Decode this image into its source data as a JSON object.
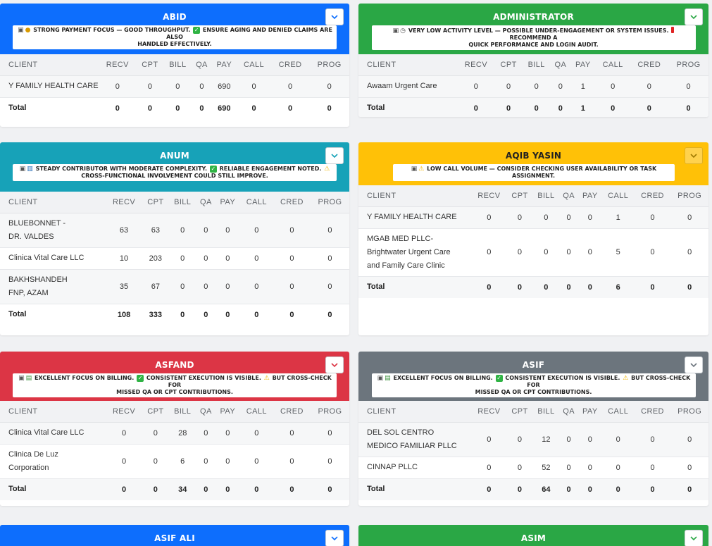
{
  "colors": {
    "blue": "#0d6efd",
    "green": "#2aa745",
    "teal": "#17a2b8",
    "yellow": "#ffc107",
    "red": "#dc3545",
    "gray": "#6c757d"
  },
  "columns": [
    "CLIENT",
    "RECV",
    "CPT",
    "BILL",
    "QA",
    "PAY",
    "CALL",
    "CRED",
    "PROG"
  ],
  "cards": {
    "abid": {
      "title": "ABID",
      "n1": "STRONG PAYMENT FOCUS — GOOD THROUGHPUT.",
      "n2": "ENSURE AGING AND DENIED CLAIMS ARE ALSO",
      "n3": "HANDLED EFFECTIVELY.",
      "rows": [
        [
          "Y FAMILY HEALTH CARE",
          "0",
          "0",
          "0",
          "0",
          "690",
          "0",
          "0",
          "0"
        ]
      ],
      "total": [
        "Total",
        "0",
        "0",
        "0",
        "0",
        "690",
        "0",
        "0",
        "0"
      ]
    },
    "administrator": {
      "title": "ADMINISTRATOR",
      "n1": "VERY LOW ACTIVITY LEVEL — POSSIBLE UNDER-ENGAGEMENT OR SYSTEM ISSUES.",
      "n2": "RECOMMEND A",
      "n3": "QUICK PERFORMANCE AND LOGIN AUDIT.",
      "rows": [
        [
          "Awaam Urgent Care",
          "0",
          "0",
          "0",
          "0",
          "1",
          "0",
          "0",
          "0"
        ]
      ],
      "total": [
        "Total",
        "0",
        "0",
        "0",
        "0",
        "1",
        "0",
        "0",
        "0"
      ]
    },
    "anum": {
      "title": "ANUM",
      "n1": "STEADY CONTRIBUTOR WITH MODERATE COMPLEXITY.",
      "n2": "RELIABLE ENGAGEMENT NOTED.",
      "n3": "CROSS-FUNCTIONAL INVOLVEMENT COULD STILL IMPROVE.",
      "rows": [
        [
          "BLUEBONNET - DR. VALDES",
          "63",
          "63",
          "0",
          "0",
          "0",
          "0",
          "0",
          "0"
        ],
        [
          "Clinica Vital Care LLC",
          "10",
          "203",
          "0",
          "0",
          "0",
          "0",
          "0",
          "0"
        ],
        [
          "BAKHSHANDEH FNP, AZAM",
          "35",
          "67",
          "0",
          "0",
          "0",
          "0",
          "0",
          "0"
        ]
      ],
      "total": [
        "Total",
        "108",
        "333",
        "0",
        "0",
        "0",
        "0",
        "0",
        "0"
      ]
    },
    "aqib": {
      "title": "AQIB YASIN",
      "n1": "LOW CALL VOLUME — CONSIDER CHECKING USER AVAILABILITY OR TASK ASSIGNMENT.",
      "rows": [
        [
          "Y FAMILY HEALTH CARE",
          "0",
          "0",
          "0",
          "0",
          "0",
          "1",
          "0",
          "0"
        ],
        [
          "MGAB MED PLLC-Brightwater Urgent Care and Family Care Clinic",
          "0",
          "0",
          "0",
          "0",
          "0",
          "5",
          "0",
          "0"
        ]
      ],
      "total": [
        "Total",
        "0",
        "0",
        "0",
        "0",
        "0",
        "6",
        "0",
        "0"
      ]
    },
    "asfand": {
      "title": "ASFAND",
      "n1": "EXCELLENT FOCUS ON BILLING.",
      "n2": "CONSISTENT EXECUTION IS VISIBLE.",
      "n3": "BUT CROSS-CHECK FOR",
      "n4": "MISSED QA OR CPT CONTRIBUTIONS.",
      "rows": [
        [
          "Clinica Vital Care LLC",
          "0",
          "0",
          "28",
          "0",
          "0",
          "0",
          "0",
          "0"
        ],
        [
          "Clinica De Luz Corporation",
          "0",
          "0",
          "6",
          "0",
          "0",
          "0",
          "0",
          "0"
        ]
      ],
      "total": [
        "Total",
        "0",
        "0",
        "34",
        "0",
        "0",
        "0",
        "0",
        "0"
      ]
    },
    "asif": {
      "title": "ASIF",
      "n1": "EXCELLENT FOCUS ON BILLING.",
      "n2": "CONSISTENT EXECUTION IS VISIBLE.",
      "n3": "BUT CROSS-CHECK FOR",
      "n4": "MISSED QA OR CPT CONTRIBUTIONS.",
      "rows": [
        [
          "DEL SOL CENTRO MEDICO FAMILIAR PLLC",
          "0",
          "0",
          "12",
          "0",
          "0",
          "0",
          "0",
          "0"
        ],
        [
          "CINNAP PLLC",
          "0",
          "0",
          "52",
          "0",
          "0",
          "0",
          "0",
          "0"
        ]
      ],
      "total": [
        "Total",
        "0",
        "0",
        "64",
        "0",
        "0",
        "0",
        "0",
        "0"
      ]
    },
    "asif_ali": {
      "title": "ASIF ALI"
    },
    "asim": {
      "title": "ASIM"
    }
  }
}
